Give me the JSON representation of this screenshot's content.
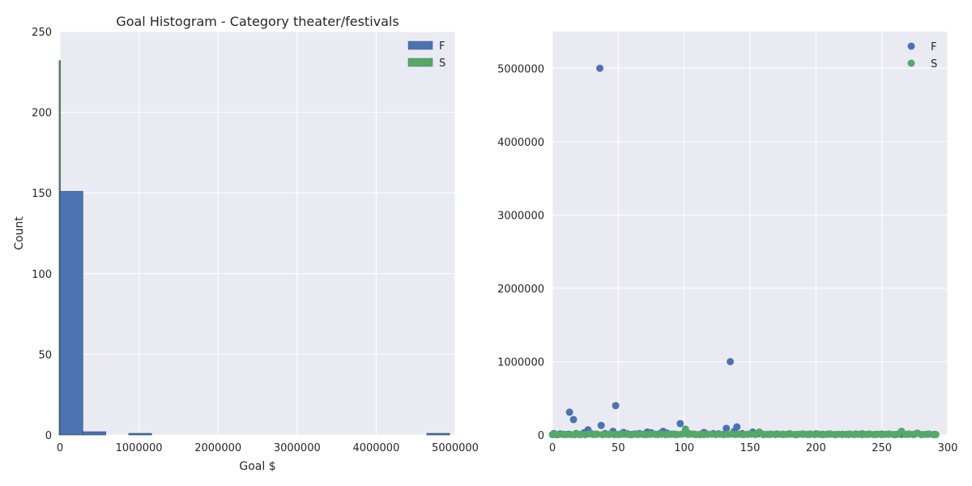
{
  "chart_data": [
    {
      "type": "bar",
      "title": "Goal Histogram - Category theater/festivals",
      "xlabel": "Goal $",
      "ylabel": "Count",
      "xlim": [
        0,
        5000000
      ],
      "ylim": [
        0,
        250
      ],
      "xticks": [
        "0",
        "1000000",
        "2000000",
        "3000000",
        "4000000",
        "5000000"
      ],
      "yticks": [
        "0",
        "50",
        "100",
        "150",
        "200",
        "250"
      ],
      "grid": true,
      "legend": "top-right",
      "bin_edges": [
        0,
        290000,
        580000,
        870000,
        1160000,
        1450000,
        1740000,
        2030000,
        2320000,
        2610000,
        2900000,
        3190000,
        3480000,
        3770000,
        4060000,
        4350000,
        4640000,
        4930000
      ],
      "series": [
        {
          "name": "F",
          "color": "#4c72b0",
          "values": [
            151,
            2,
            0,
            1,
            0,
            0,
            0,
            0,
            0,
            0,
            0,
            0,
            0,
            0,
            0,
            0,
            1
          ]
        },
        {
          "name": "S",
          "color": "#55a868",
          "values": [
            232,
            0,
            0,
            0,
            0,
            0,
            0,
            0,
            0,
            0,
            0,
            0,
            0,
            0,
            0,
            0,
            0
          ]
        }
      ]
    },
    {
      "type": "scatter",
      "title": "",
      "xlabel": "",
      "ylabel": "",
      "xlim": [
        0,
        300
      ],
      "ylim": [
        0,
        5500000
      ],
      "xticks": [
        "0",
        "50",
        "100",
        "150",
        "200",
        "250",
        "300"
      ],
      "yticks": [
        "0",
        "1000000",
        "2000000",
        "3000000",
        "4000000",
        "5000000"
      ],
      "grid": true,
      "legend": "top-right",
      "series": [
        {
          "name": "F",
          "color": "#4c72b0",
          "points": [
            [
              1,
              20000
            ],
            [
              3,
              5000
            ],
            [
              6,
              15000
            ],
            [
              9,
              8000
            ],
            [
              12,
              10000
            ],
            [
              13,
              310000
            ],
            [
              16,
              210000
            ],
            [
              18,
              20000
            ],
            [
              21,
              5000
            ],
            [
              24,
              30000
            ],
            [
              27,
              70000
            ],
            [
              30,
              15000
            ],
            [
              33,
              10000
            ],
            [
              36,
              5000000
            ],
            [
              37,
              130000
            ],
            [
              40,
              20000
            ],
            [
              43,
              8000
            ],
            [
              46,
              50000
            ],
            [
              48,
              400000
            ],
            [
              51,
              10000
            ],
            [
              54,
              35000
            ],
            [
              57,
              15000
            ],
            [
              60,
              5000
            ],
            [
              63,
              12000
            ],
            [
              66,
              20000
            ],
            [
              69,
              8000
            ],
            [
              72,
              40000
            ],
            [
              75,
              30000
            ],
            [
              78,
              10000
            ],
            [
              81,
              15000
            ],
            [
              84,
              50000
            ],
            [
              87,
              25000
            ],
            [
              90,
              10000
            ],
            [
              93,
              8000
            ],
            [
              97,
              155000
            ],
            [
              100,
              20000
            ],
            [
              104,
              15000
            ],
            [
              108,
              10000
            ],
            [
              112,
              5000
            ],
            [
              115,
              35000
            ],
            [
              118,
              10000
            ],
            [
              122,
              20000
            ],
            [
              126,
              15000
            ],
            [
              130,
              10000
            ],
            [
              132,
              90000
            ],
            [
              135,
              1000000
            ],
            [
              138,
              50000
            ],
            [
              140,
              110000
            ],
            [
              144,
              20000
            ],
            [
              148,
              10000
            ],
            [
              152,
              40000
            ],
            [
              156,
              15000
            ],
            [
              160,
              10000
            ],
            [
              165,
              8000
            ],
            [
              170,
              12000
            ],
            [
              175,
              10000
            ],
            [
              180,
              15000
            ],
            [
              185,
              5000
            ],
            [
              190,
              10000
            ],
            [
              195,
              8000
            ],
            [
              200,
              15000
            ],
            [
              205,
              10000
            ],
            [
              210,
              12000
            ],
            [
              215,
              6000
            ],
            [
              220,
              10000
            ],
            [
              225,
              8000
            ],
            [
              230,
              12000
            ],
            [
              235,
              15000
            ],
            [
              240,
              10000
            ],
            [
              245,
              8000
            ],
            [
              250,
              12000
            ],
            [
              255,
              10000
            ],
            [
              260,
              5000
            ],
            [
              265,
              8000
            ],
            [
              270,
              10000
            ],
            [
              275,
              12000
            ],
            [
              280,
              6000
            ],
            [
              285,
              10000
            ],
            [
              290,
              8000
            ]
          ]
        },
        {
          "name": "S",
          "color": "#55a868",
          "points": [
            [
              0,
              5000
            ],
            [
              2,
              8000
            ],
            [
              4,
              3000
            ],
            [
              7,
              10000
            ],
            [
              10,
              5000
            ],
            [
              14,
              6000
            ],
            [
              17,
              4000
            ],
            [
              19,
              12000
            ],
            [
              22,
              8000
            ],
            [
              25,
              5000
            ],
            [
              28,
              15000
            ],
            [
              31,
              6000
            ],
            [
              34,
              10000
            ],
            [
              38,
              5000
            ],
            [
              41,
              8000
            ],
            [
              44,
              12000
            ],
            [
              47,
              5000
            ],
            [
              50,
              6000
            ],
            [
              53,
              10000
            ],
            [
              56,
              8000
            ],
            [
              59,
              5000
            ],
            [
              62,
              12000
            ],
            [
              65,
              6000
            ],
            [
              68,
              10000
            ],
            [
              71,
              5000
            ],
            [
              74,
              8000
            ],
            [
              77,
              12000
            ],
            [
              80,
              6000
            ],
            [
              83,
              10000
            ],
            [
              86,
              5000
            ],
            [
              89,
              8000
            ],
            [
              92,
              12000
            ],
            [
              95,
              6000
            ],
            [
              98,
              10000
            ],
            [
              101,
              80000
            ],
            [
              103,
              8000
            ],
            [
              106,
              12000
            ],
            [
              109,
              6000
            ],
            [
              112,
              10000
            ],
            [
              115,
              5000
            ],
            [
              118,
              8000
            ],
            [
              121,
              12000
            ],
            [
              124,
              6000
            ],
            [
              127,
              10000
            ],
            [
              130,
              5000
            ],
            [
              133,
              8000
            ],
            [
              136,
              12000
            ],
            [
              139,
              6000
            ],
            [
              142,
              10000
            ],
            [
              145,
              5000
            ],
            [
              148,
              8000
            ],
            [
              151,
              12000
            ],
            [
              154,
              6000
            ],
            [
              157,
              40000
            ],
            [
              160,
              5000
            ],
            [
              163,
              8000
            ],
            [
              166,
              12000
            ],
            [
              169,
              6000
            ],
            [
              172,
              10000
            ],
            [
              175,
              5000
            ],
            [
              178,
              8000
            ],
            [
              181,
              12000
            ],
            [
              184,
              6000
            ],
            [
              187,
              10000
            ],
            [
              190,
              15000
            ],
            [
              193,
              8000
            ],
            [
              196,
              12000
            ],
            [
              199,
              6000
            ],
            [
              202,
              10000
            ],
            [
              205,
              5000
            ],
            [
              208,
              8000
            ],
            [
              211,
              12000
            ],
            [
              214,
              6000
            ],
            [
              217,
              10000
            ],
            [
              220,
              5000
            ],
            [
              223,
              8000
            ],
            [
              226,
              12000
            ],
            [
              229,
              6000
            ],
            [
              232,
              10000
            ],
            [
              235,
              5000
            ],
            [
              238,
              8000
            ],
            [
              241,
              12000
            ],
            [
              244,
              6000
            ],
            [
              247,
              10000
            ],
            [
              250,
              5000
            ],
            [
              253,
              8000
            ],
            [
              256,
              12000
            ],
            [
              259,
              6000
            ],
            [
              262,
              10000
            ],
            [
              265,
              50000
            ],
            [
              268,
              8000
            ],
            [
              271,
              12000
            ],
            [
              274,
              6000
            ],
            [
              277,
              25000
            ],
            [
              280,
              5000
            ],
            [
              283,
              8000
            ],
            [
              286,
              12000
            ],
            [
              289,
              6000
            ],
            [
              291,
              5000
            ]
          ]
        }
      ]
    }
  ]
}
